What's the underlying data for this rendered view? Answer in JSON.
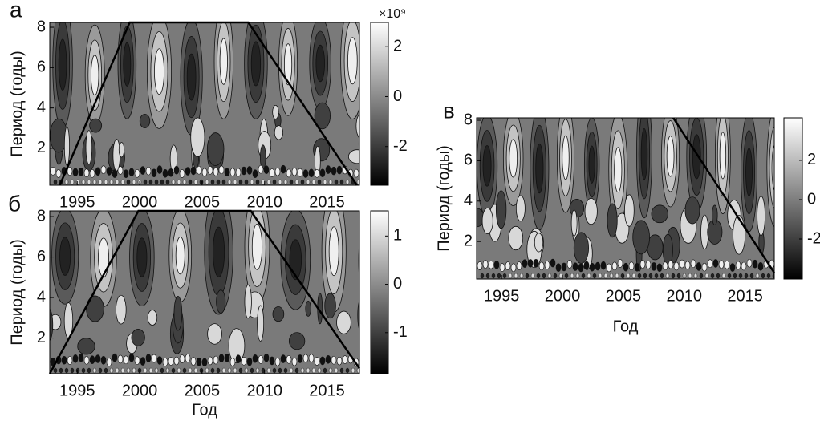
{
  "chart_data": [
    {
      "type": "contour",
      "panel_label": "а",
      "ylabel": "Период (годы)",
      "colorbar_label": "×10⁹",
      "xlim": [
        1992.8,
        2017.6
      ],
      "ylim": [
        0.17,
        8.24
      ],
      "xticks": [
        1995,
        2000,
        2005,
        2010,
        2015
      ],
      "yticks": [
        2,
        4,
        6,
        8
      ],
      "clim": [
        -3.55,
        2.97
      ],
      "cticks": [
        2,
        0,
        -2
      ],
      "coi": {
        "x": [
          1993.6,
          1999.2,
          2008.7,
          2017.4
        ],
        "y": [
          0.17,
          8.24,
          8.24,
          0.17
        ]
      }
    },
    {
      "type": "contour",
      "panel_label": "б",
      "ylabel": "Период (годы)",
      "xlabel": "Год",
      "xlim": [
        1992.8,
        2017.6
      ],
      "ylim": [
        0.24,
        8.28
      ],
      "xticks": [
        1995,
        2000,
        2005,
        2010,
        2015
      ],
      "yticks": [
        2,
        4,
        6,
        8
      ],
      "clim": [
        -1.85,
        1.52
      ],
      "cticks": [
        1,
        0,
        -1
      ],
      "coi": {
        "x": [
          1992.8,
          1999.9,
          2008.9,
          2017.6
        ],
        "y": [
          0.24,
          8.28,
          8.28,
          0.5
        ]
      }
    },
    {
      "type": "contour",
      "panel_label": "в",
      "ylabel": "Период (годы)",
      "xlabel": "Год",
      "xlim": [
        1992.95,
        2017.4
      ],
      "ylim": [
        0.14,
        8.12
      ],
      "xticks": [
        1995,
        2000,
        2005,
        2010,
        2015
      ],
      "yticks": [
        2,
        4,
        6,
        8
      ],
      "clim": [
        -4.04,
        4.16
      ],
      "cticks": [
        2,
        0,
        -2
      ],
      "coi": {
        "x": [
          2009.1,
          2017.4
        ],
        "y": [
          8.12,
          0.45
        ]
      }
    }
  ]
}
